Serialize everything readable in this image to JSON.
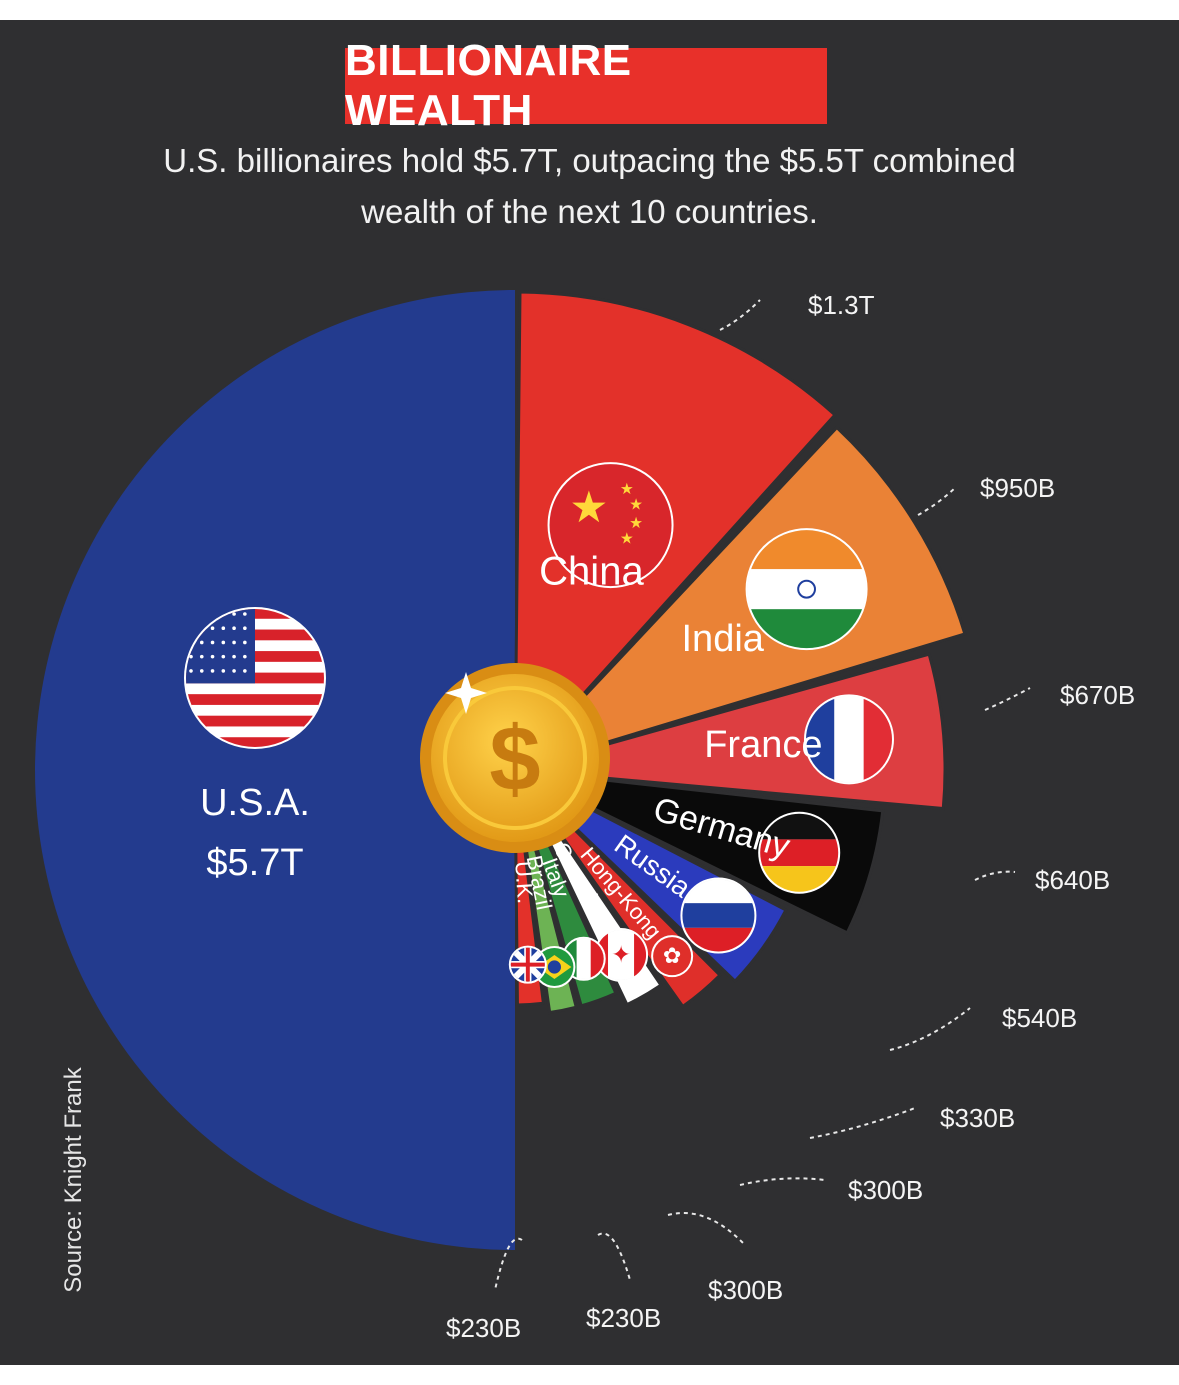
{
  "header": {
    "title": "BILLIONAIRE WEALTH",
    "subtitle_line1": "U.S. billionaires hold $5.7T, outpacing the $5.5T combined",
    "subtitle_line2": "wealth of the next 10 countries."
  },
  "source": "Source: Knight Frank",
  "chart_data": {
    "type": "pie",
    "title": "BILLIONAIRE WEALTH",
    "unit": "USD",
    "slices": [
      {
        "name": "U.S.A.",
        "value": 5700,
        "label": "$5.7T",
        "color": "#233b8e"
      },
      {
        "name": "China",
        "value": 1300,
        "label": "$1.3T",
        "color": "#e3312a"
      },
      {
        "name": "India",
        "value": 950,
        "label": "$950B",
        "color": "#ea8236"
      },
      {
        "name": "France",
        "value": 670,
        "label": "$670B",
        "color": "#dd3e41"
      },
      {
        "name": "Germany",
        "value": 640,
        "label": "$640B",
        "color": "#0a0a0a"
      },
      {
        "name": "Russia",
        "value": 540,
        "label": "$540B",
        "color": "#2b3bbd"
      },
      {
        "name": "Hong-Kong",
        "value": 330,
        "label": "$330B",
        "color": "#df2f2a"
      },
      {
        "name": "Canada",
        "value": 300,
        "label": "$300B",
        "color": "#ffffff"
      },
      {
        "name": "Italy",
        "value": 300,
        "label": "$300B",
        "color": "#2e8b3e"
      },
      {
        "name": "Brazil",
        "value": 230,
        "label": "$230B",
        "color": "#6db354"
      },
      {
        "name": "U.K.",
        "value": 230,
        "label": "$230B",
        "color": "#e3312a"
      }
    ]
  },
  "icons": {
    "center": "dollar-coin-icon",
    "flags": [
      "usa-flag-icon",
      "china-flag-icon",
      "india-flag-icon",
      "france-flag-icon",
      "germany-flag-icon",
      "russia-flag-icon",
      "hong-kong-flag-icon",
      "canada-flag-icon",
      "italy-flag-icon",
      "brazil-flag-icon",
      "uk-flag-icon"
    ]
  },
  "colors": {
    "background": "#2f2f31",
    "title_box": "#e8302a",
    "coin": "#f2b22c"
  }
}
